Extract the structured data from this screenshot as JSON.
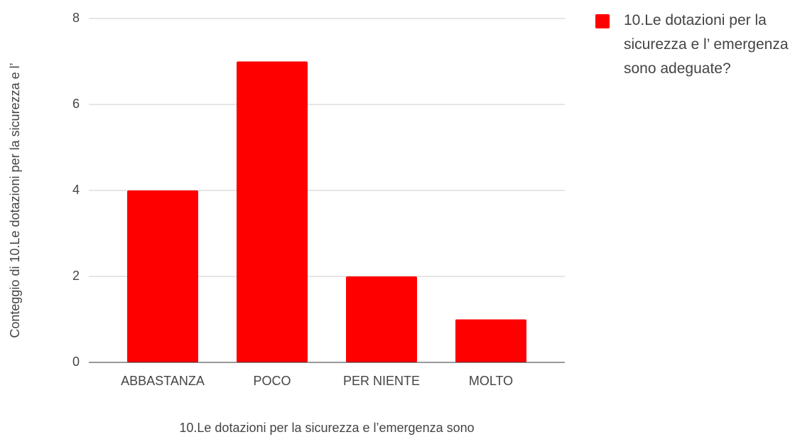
{
  "chart_data": {
    "type": "bar",
    "categories": [
      "ABBASTANZA",
      "POCO",
      "PER NIENTE",
      "MOLTO"
    ],
    "series": [
      {
        "name": "10.Le dotazioni per la sicurezza e l’ emergenza sono adeguate?",
        "color": "#ff0000",
        "values": [
          4,
          7,
          2,
          1
        ]
      }
    ],
    "xlabel": "10.Le dotazioni per la sicurezza e l’emergenza sono",
    "ylabel": "Conteggio di 10.Le dotazioni per la sicurezza e l’",
    "ylim": [
      0,
      8
    ],
    "yticks": [
      0,
      2,
      4,
      6,
      8
    ],
    "grid": true,
    "legend": "right"
  }
}
